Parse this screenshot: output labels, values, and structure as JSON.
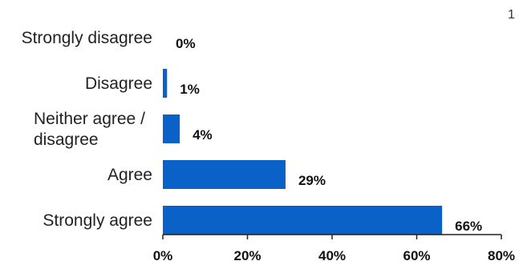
{
  "page_number": "1",
  "colors": {
    "bar": "#0a62c9",
    "axis": "#222222"
  },
  "chart_data": {
    "type": "bar",
    "orientation": "horizontal",
    "categories": [
      "Strongly disagree",
      "Disagree",
      "Neither agree / disagree",
      "Agree",
      "Strongly agree"
    ],
    "category_lines": [
      [
        "Strongly disagree"
      ],
      [
        "Disagree"
      ],
      [
        "Neither agree /",
        "disagree"
      ],
      [
        "Agree"
      ],
      [
        "Strongly agree"
      ]
    ],
    "values": [
      0,
      1,
      4,
      29,
      66
    ],
    "data_labels": [
      "0%",
      "1%",
      "4%",
      "29%",
      "66%"
    ],
    "xlim": [
      0,
      80
    ],
    "x_ticks": [
      0,
      20,
      40,
      60,
      80
    ],
    "x_tick_labels": [
      "0%",
      "20%",
      "40%",
      "60%",
      "80%"
    ],
    "title": "",
    "xlabel": "",
    "ylabel": "",
    "grid": false,
    "legend": "none"
  }
}
